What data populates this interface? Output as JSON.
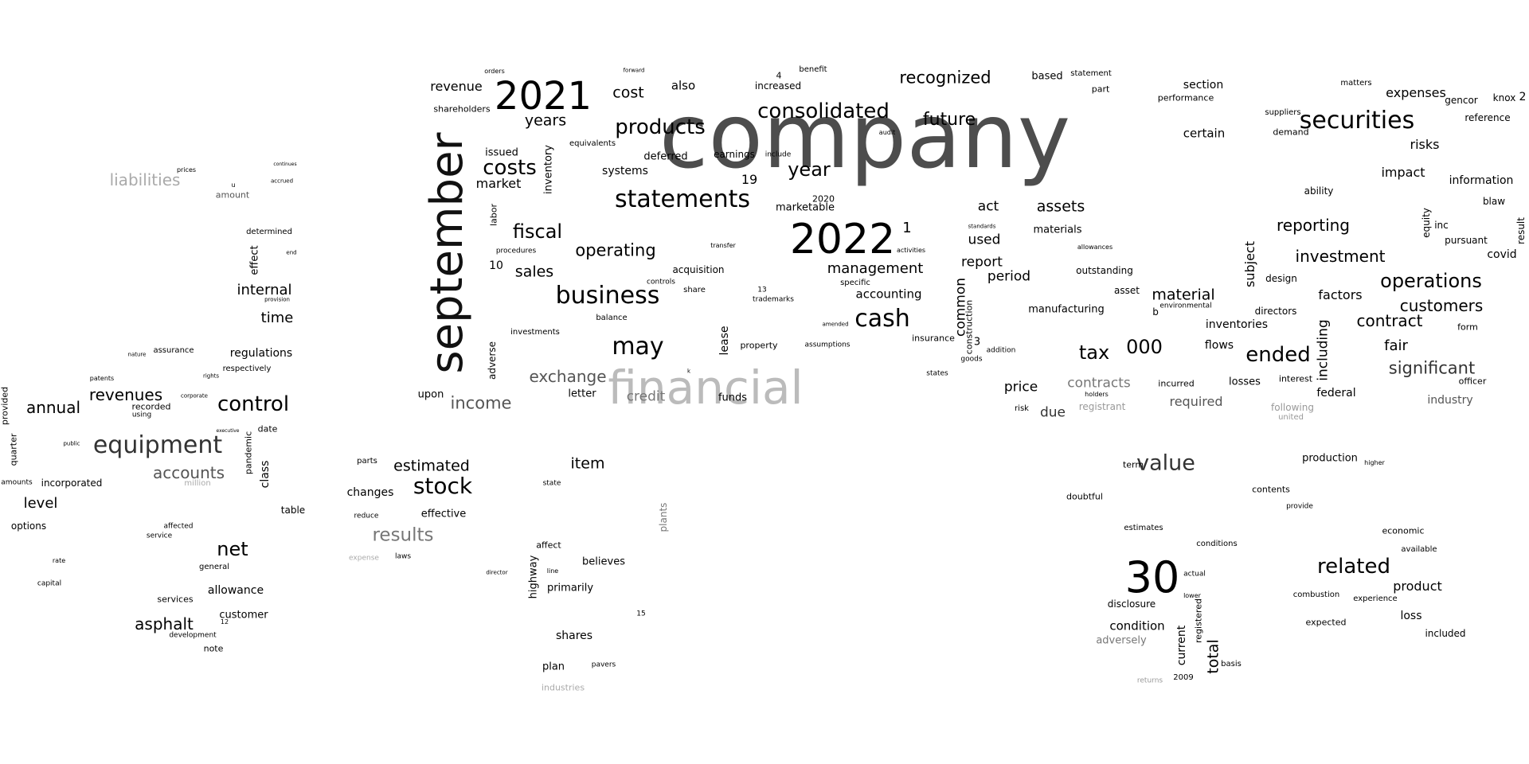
{
  "words": [
    {
      "t": "company",
      "c": "#4d4d4d"
    },
    {
      "t": "financial",
      "c": "#bbbbbb"
    },
    {
      "t": "september",
      "c": "#111111"
    },
    {
      "t": "2022",
      "c": "#000000"
    },
    {
      "t": "2021",
      "c": "#000000"
    },
    {
      "t": "30",
      "c": "#000000"
    },
    {
      "t": "statements",
      "c": "#000000"
    },
    {
      "t": "securities",
      "c": "#000000"
    },
    {
      "t": "business",
      "c": "#000000"
    },
    {
      "t": "equipment",
      "c": "#333333"
    },
    {
      "t": "consolidated",
      "c": "#000000"
    },
    {
      "t": "products",
      "c": "#000000"
    },
    {
      "t": "cash",
      "c": "#000000"
    },
    {
      "t": "may",
      "c": "#000000"
    },
    {
      "t": "stock",
      "c": "#000000"
    },
    {
      "t": "value",
      "c": "#333333"
    },
    {
      "t": "related",
      "c": "#000000"
    },
    {
      "t": "costs",
      "c": "#000000"
    },
    {
      "t": "fiscal",
      "c": "#000000"
    },
    {
      "t": "year",
      "c": "#000000"
    },
    {
      "t": "tax",
      "c": "#000000"
    },
    {
      "t": "000",
      "c": "#000000"
    },
    {
      "t": "ended",
      "c": "#000000"
    },
    {
      "t": "control",
      "c": "#000000"
    },
    {
      "t": "operations",
      "c": "#000000"
    },
    {
      "t": "results",
      "c": "#777777"
    },
    {
      "t": "net",
      "c": "#000000"
    },
    {
      "t": "liabilities",
      "c": "#aaaaaa"
    },
    {
      "t": "income",
      "c": "#555555"
    },
    {
      "t": "exchange",
      "c": "#555555"
    },
    {
      "t": "operating",
      "c": "#000000"
    },
    {
      "t": "recognized",
      "c": "#000000"
    },
    {
      "t": "future",
      "c": "#000000"
    },
    {
      "t": "significant",
      "c": "#333333"
    },
    {
      "t": "customers",
      "c": "#000000"
    },
    {
      "t": "contract",
      "c": "#000000"
    },
    {
      "t": "investment",
      "c": "#000000"
    },
    {
      "t": "reporting",
      "c": "#000000"
    },
    {
      "t": "revenues",
      "c": "#000000"
    },
    {
      "t": "annual",
      "c": "#000000"
    },
    {
      "t": "accounts",
      "c": "#555555"
    },
    {
      "t": "asphalt",
      "c": "#000000"
    },
    {
      "t": "estimated",
      "c": "#000000"
    },
    {
      "t": "item",
      "c": "#000000"
    },
    {
      "t": "management",
      "c": "#000000"
    },
    {
      "t": "assets",
      "c": "#000000"
    },
    {
      "t": "material",
      "c": "#000000"
    },
    {
      "t": "sales",
      "c": "#000000"
    },
    {
      "t": "cost",
      "c": "#000000"
    },
    {
      "t": "years",
      "c": "#000000"
    },
    {
      "t": "market",
      "c": "#000000"
    },
    {
      "t": "revenue",
      "c": "#000000"
    },
    {
      "t": "expenses",
      "c": "#000000"
    },
    {
      "t": "risks",
      "c": "#000000"
    },
    {
      "t": "impact",
      "c": "#000000"
    },
    {
      "t": "information",
      "c": "#000000"
    },
    {
      "t": "factors",
      "c": "#000000"
    },
    {
      "t": "fair",
      "c": "#000000"
    },
    {
      "t": "industry",
      "c": "#555555"
    },
    {
      "t": "credit",
      "c": "#777777"
    },
    {
      "t": "contracts",
      "c": "#777777"
    },
    {
      "t": "price",
      "c": "#000000"
    },
    {
      "t": "due",
      "c": "#333333"
    },
    {
      "t": "required",
      "c": "#555555"
    },
    {
      "t": "internal",
      "c": "#000000"
    },
    {
      "t": "time",
      "c": "#000000"
    },
    {
      "t": "level",
      "c": "#000000"
    },
    {
      "t": "regulations",
      "c": "#000000"
    },
    {
      "t": "allowance",
      "c": "#000000"
    },
    {
      "t": "customer",
      "c": "#000000"
    },
    {
      "t": "condition",
      "c": "#000000"
    },
    {
      "t": "product",
      "c": "#000000"
    },
    {
      "t": "loss",
      "c": "#000000"
    },
    {
      "t": "shares",
      "c": "#000000"
    },
    {
      "t": "changes",
      "c": "#000000"
    },
    {
      "t": "believes",
      "c": "#000000"
    },
    {
      "t": "primarily",
      "c": "#000000"
    },
    {
      "t": "report",
      "c": "#000000"
    },
    {
      "t": "period",
      "c": "#000000"
    },
    {
      "t": "used",
      "c": "#000000"
    },
    {
      "t": "act",
      "c": "#000000"
    },
    {
      "t": "accounting",
      "c": "#000000"
    },
    {
      "t": "section",
      "c": "#000000"
    },
    {
      "t": "certain",
      "c": "#000000"
    },
    {
      "t": "inventories",
      "c": "#000000"
    },
    {
      "t": "flows",
      "c": "#000000"
    },
    {
      "t": "covid",
      "c": "#000000"
    },
    {
      "t": "also",
      "c": "#000000"
    },
    {
      "t": "systems",
      "c": "#000000"
    },
    {
      "t": "acquisition",
      "c": "#000000"
    },
    {
      "t": "manufacturing",
      "c": "#000000"
    },
    {
      "t": "production",
      "c": "#000000"
    },
    {
      "t": "effective",
      "c": "#000000"
    },
    {
      "t": "plan",
      "c": "#000000"
    },
    {
      "t": "federal",
      "c": "#000000"
    },
    {
      "t": "adversely",
      "c": "#777777"
    },
    {
      "t": "total",
      "c": "#000000",
      "v": true
    },
    {
      "t": "common",
      "c": "#000000",
      "v": true
    },
    {
      "t": "including",
      "c": "#000000",
      "v": true
    },
    {
      "t": "subject",
      "c": "#000000",
      "v": true
    },
    {
      "t": "inventory",
      "c": "#000000",
      "v": true
    },
    {
      "t": "current",
      "c": "#000000",
      "v": true
    },
    {
      "t": "lease",
      "c": "#000000",
      "v": true
    },
    {
      "t": "class",
      "c": "#000000",
      "v": true
    },
    {
      "t": "effect",
      "c": "#000000",
      "v": true
    },
    {
      "t": "highway",
      "c": "#000000",
      "v": true
    },
    {
      "t": "plants",
      "c": "#777777",
      "v": true
    },
    {
      "t": "equity",
      "c": "#000000",
      "v": true
    },
    {
      "t": "adverse",
      "c": "#000000",
      "v": true
    },
    {
      "t": "pandemic",
      "c": "#000000",
      "v": true
    },
    {
      "t": "construction",
      "c": "#000000",
      "v": true
    },
    {
      "t": "registered",
      "c": "#000000",
      "v": true
    },
    {
      "t": "result",
      "c": "#000000",
      "v": true
    },
    {
      "t": "labor",
      "c": "#000000",
      "v": true
    },
    {
      "t": "provided",
      "c": "#000000",
      "v": true
    },
    {
      "t": "quarter",
      "c": "#000000",
      "v": true
    },
    {
      "t": "deferred",
      "c": "#000000"
    },
    {
      "t": "issued",
      "c": "#000000"
    },
    {
      "t": "equivalents",
      "c": "#000000"
    },
    {
      "t": "earnings",
      "c": "#000000"
    },
    {
      "t": "marketable",
      "c": "#000000"
    },
    {
      "t": "materials",
      "c": "#000000"
    },
    {
      "t": "outstanding",
      "c": "#000000"
    },
    {
      "t": "insurance",
      "c": "#000000"
    },
    {
      "t": "property",
      "c": "#000000"
    },
    {
      "t": "funds",
      "c": "#000000"
    },
    {
      "t": "letter",
      "c": "#000000"
    },
    {
      "t": "upon",
      "c": "#000000"
    },
    {
      "t": "losses",
      "c": "#000000"
    },
    {
      "t": "incurred",
      "c": "#000000"
    },
    {
      "t": "directors",
      "c": "#000000"
    },
    {
      "t": "design",
      "c": "#000000"
    },
    {
      "t": "demand",
      "c": "#000000"
    },
    {
      "t": "suppliers",
      "c": "#000000"
    },
    {
      "t": "performance",
      "c": "#000000"
    },
    {
      "t": "matters",
      "c": "#000000"
    },
    {
      "t": "reference",
      "c": "#000000"
    },
    {
      "t": "ability",
      "c": "#000000"
    },
    {
      "t": "blaw",
      "c": "#000000"
    },
    {
      "t": "pursuant",
      "c": "#000000"
    },
    {
      "t": "inc",
      "c": "#000000"
    },
    {
      "t": "officer",
      "c": "#000000"
    },
    {
      "t": "form",
      "c": "#000000"
    },
    {
      "t": "knox",
      "c": "#000000"
    },
    {
      "t": "gencor",
      "c": "#000000"
    },
    {
      "t": "interest",
      "c": "#000000"
    },
    {
      "t": "registrant",
      "c": "#999999"
    },
    {
      "t": "following",
      "c": "#999999"
    },
    {
      "t": "united",
      "c": "#999999"
    },
    {
      "t": "economic",
      "c": "#000000"
    },
    {
      "t": "available",
      "c": "#000000"
    },
    {
      "t": "included",
      "c": "#000000"
    },
    {
      "t": "expected",
      "c": "#000000"
    },
    {
      "t": "experience",
      "c": "#000000"
    },
    {
      "t": "combustion",
      "c": "#000000"
    },
    {
      "t": "contents",
      "c": "#000000"
    },
    {
      "t": "provide",
      "c": "#000000"
    },
    {
      "t": "conditions",
      "c": "#000000"
    },
    {
      "t": "estimates",
      "c": "#000000"
    },
    {
      "t": "disclosure",
      "c": "#000000"
    },
    {
      "t": "doubtful",
      "c": "#000000"
    },
    {
      "t": "term",
      "c": "#000000"
    },
    {
      "t": "actual",
      "c": "#000000"
    },
    {
      "t": "basis",
      "c": "#000000"
    },
    {
      "t": "lower",
      "c": "#000000"
    },
    {
      "t": "2009",
      "c": "#000000"
    },
    {
      "t": "returns",
      "c": "#999999"
    },
    {
      "t": "incorporated",
      "c": "#000000"
    },
    {
      "t": "options",
      "c": "#000000"
    },
    {
      "t": "amounts",
      "c": "#000000"
    },
    {
      "t": "recorded",
      "c": "#000000"
    },
    {
      "t": "using",
      "c": "#000000"
    },
    {
      "t": "respectively",
      "c": "#000000"
    },
    {
      "t": "assurance",
      "c": "#000000"
    },
    {
      "t": "determined",
      "c": "#000000"
    },
    {
      "t": "amount",
      "c": "#555555"
    },
    {
      "t": "date",
      "c": "#000000"
    },
    {
      "t": "table",
      "c": "#000000"
    },
    {
      "t": "services",
      "c": "#000000"
    },
    {
      "t": "general",
      "c": "#000000"
    },
    {
      "t": "note",
      "c": "#000000"
    },
    {
      "t": "development",
      "c": "#000000"
    },
    {
      "t": "affected",
      "c": "#000000"
    },
    {
      "t": "service",
      "c": "#000000"
    },
    {
      "t": "million",
      "c": "#aaaaaa"
    },
    {
      "t": "parts",
      "c": "#000000"
    },
    {
      "t": "reduce",
      "c": "#000000"
    },
    {
      "t": "laws",
      "c": "#000000"
    },
    {
      "t": "expense",
      "c": "#aaaaaa"
    },
    {
      "t": "affect",
      "c": "#000000"
    },
    {
      "t": "industries",
      "c": "#aaaaaa"
    },
    {
      "t": "pavers",
      "c": "#000000"
    },
    {
      "t": "shareholders",
      "c": "#000000"
    },
    {
      "t": "specific",
      "c": "#000000"
    },
    {
      "t": "increased",
      "c": "#000000"
    },
    {
      "t": "benefit",
      "c": "#000000"
    },
    {
      "t": "based",
      "c": "#000000"
    },
    {
      "t": "statement",
      "c": "#000000"
    },
    {
      "t": "part",
      "c": "#000000"
    },
    {
      "t": "asset",
      "c": "#000000"
    },
    {
      "t": "investments",
      "c": "#000000"
    },
    {
      "t": "procedures",
      "c": "#000000"
    },
    {
      "t": "balance",
      "c": "#000000"
    },
    {
      "t": "controls",
      "c": "#000000"
    },
    {
      "t": "share",
      "c": "#000000"
    },
    {
      "t": "transfer",
      "c": "#000000"
    },
    {
      "t": "trademarks",
      "c": "#000000"
    },
    {
      "t": "assumptions",
      "c": "#000000"
    },
    {
      "t": "amended",
      "c": "#000000"
    },
    {
      "t": "activities",
      "c": "#000000"
    },
    {
      "t": "standards",
      "c": "#000000"
    },
    {
      "t": "addition",
      "c": "#000000"
    },
    {
      "t": "goods",
      "c": "#000000"
    },
    {
      "t": "states",
      "c": "#000000"
    },
    {
      "t": "risk",
      "c": "#000000"
    },
    {
      "t": "holders",
      "c": "#000000"
    },
    {
      "t": "environmental",
      "c": "#000000"
    },
    {
      "t": "allowances",
      "c": "#000000"
    },
    {
      "t": "include",
      "c": "#000000"
    },
    {
      "t": "audit",
      "c": "#000000"
    },
    {
      "t": "orders",
      "c": "#000000"
    },
    {
      "t": "forward",
      "c": "#000000"
    },
    {
      "t": "higher",
      "c": "#000000"
    },
    {
      "t": "patents",
      "c": "#000000"
    },
    {
      "t": "corporate",
      "c": "#000000"
    },
    {
      "t": "rights",
      "c": "#000000"
    },
    {
      "t": "public",
      "c": "#000000"
    },
    {
      "t": "executive",
      "c": "#000000"
    },
    {
      "t": "prices",
      "c": "#000000"
    },
    {
      "t": "accrued",
      "c": "#000000"
    },
    {
      "t": "provision",
      "c": "#000000"
    },
    {
      "t": "continues",
      "c": "#000000"
    },
    {
      "t": "end",
      "c": "#000000"
    },
    {
      "t": "nature",
      "c": "#000000"
    },
    {
      "t": "capital",
      "c": "#000000"
    },
    {
      "t": "rate",
      "c": "#000000"
    },
    {
      "t": "director",
      "c": "#000000"
    },
    {
      "t": "line",
      "c": "#000000"
    },
    {
      "t": "state",
      "c": "#000000"
    },
    {
      "t": "12",
      "c": "#000000"
    },
    {
      "t": "15",
      "c": "#000000"
    },
    {
      "t": "19",
      "c": "#000000"
    },
    {
      "t": "1",
      "c": "#000000"
    },
    {
      "t": "3",
      "c": "#000000"
    },
    {
      "t": "4",
      "c": "#000000"
    },
    {
      "t": "2",
      "c": "#000000"
    },
    {
      "t": "10",
      "c": "#000000"
    },
    {
      "t": "13",
      "c": "#000000"
    },
    {
      "t": "2020",
      "c": "#000000"
    },
    {
      "t": "b",
      "c": "#000000"
    },
    {
      "t": "u",
      "c": "#000000"
    },
    {
      "t": "k",
      "c": "#000000"
    }
  ]
}
